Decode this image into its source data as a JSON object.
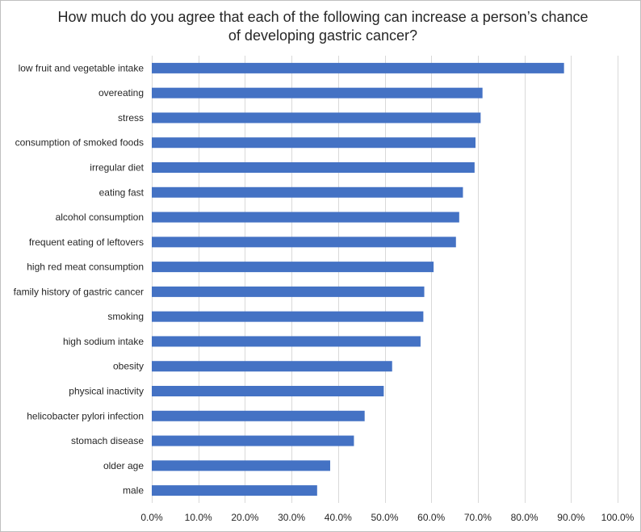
{
  "chart_data": {
    "type": "bar",
    "orientation": "horizontal",
    "title_lines": [
      "How much do you agree that each of the following can increase a person’s chance",
      "of developing gastric cancer?"
    ],
    "categories": [
      "low fruit and vegetable intake",
      "overeating",
      "stress",
      "consumption of smoked foods",
      "irregular diet",
      "eating fast",
      "alcohol consumption",
      "frequent eating of leftovers",
      "high red meat consumption",
      "family history of gastric cancer",
      "smoking",
      "high sodium intake",
      "obesity",
      "physical inactivity",
      "helicobacter pylori infection",
      "stomach disease",
      "older age",
      "male"
    ],
    "values": [
      88.5,
      71.0,
      70.6,
      69.5,
      69.3,
      66.8,
      66.0,
      65.3,
      60.5,
      58.5,
      58.3,
      57.7,
      51.6,
      49.8,
      45.7,
      43.4,
      38.3,
      35.5
    ],
    "xlim": [
      0,
      100
    ],
    "xticks": [
      "0.0%",
      "10.0%",
      "20.0%",
      "30.0%",
      "40.0%",
      "50.0%",
      "60.0%",
      "70.0%",
      "80.0%",
      "90.0%",
      "100.0%"
    ],
    "grid": true,
    "bar_color": "#4472c4",
    "grid_color": "#d9d9d9"
  }
}
